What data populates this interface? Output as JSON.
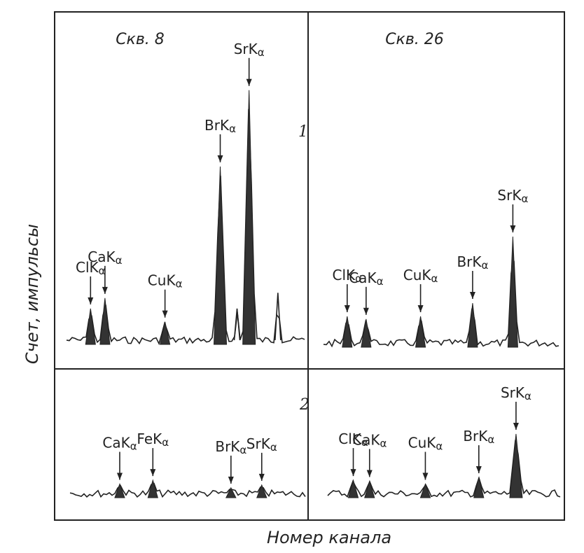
{
  "chart_data": {
    "type": "line",
    "xlabel": "Номер канала",
    "ylabel": "Счет, импульсы",
    "columns": [
      "Скв. 8",
      "Скв. 26"
    ],
    "rows": [
      "1",
      "2"
    ],
    "panels": [
      {
        "column": 0,
        "row": 0,
        "peaks": [
          {
            "label": "ClK",
            "sub": "α",
            "x": 0.1,
            "height": 0.12
          },
          {
            "label": "CaK",
            "sub": "α",
            "x": 0.16,
            "height": 0.16
          },
          {
            "label": "CuK",
            "sub": "α",
            "x": 0.41,
            "height": 0.07
          },
          {
            "label": "BrK",
            "sub": "α",
            "x": 0.64,
            "height": 0.66
          },
          {
            "label": "SrK",
            "sub": "α",
            "x": 0.76,
            "height": 0.95
          }
        ],
        "extra_peaks": [
          {
            "x": 0.71,
            "height": 0.12
          },
          {
            "x": 0.88,
            "height": 0.18
          }
        ]
      },
      {
        "column": 1,
        "row": 0,
        "peaks": [
          {
            "label": "ClK",
            "sub": "α",
            "x": 0.1,
            "height": 0.1
          },
          {
            "label": "CaK",
            "sub": "α",
            "x": 0.18,
            "height": 0.09
          },
          {
            "label": "CuK",
            "sub": "α",
            "x": 0.41,
            "height": 0.1
          },
          {
            "label": "BrK",
            "sub": "α",
            "x": 0.63,
            "height": 0.15
          },
          {
            "label": "SrK",
            "sub": "α",
            "x": 0.8,
            "height": 0.4
          }
        ],
        "extra_peaks": []
      },
      {
        "column": 0,
        "row": 1,
        "peaks": [
          {
            "label": "CaK",
            "sub": "α",
            "x": 0.21,
            "height": 0.1
          },
          {
            "label": "FeK",
            "sub": "α",
            "x": 0.35,
            "height": 0.14
          },
          {
            "label": "BrK",
            "sub": "α",
            "x": 0.68,
            "height": 0.06
          },
          {
            "label": "SrK",
            "sub": "α",
            "x": 0.81,
            "height": 0.09
          }
        ],
        "extra_peaks": []
      },
      {
        "column": 1,
        "row": 1,
        "peaks": [
          {
            "label": "ClK",
            "sub": "α",
            "x": 0.11,
            "height": 0.14
          },
          {
            "label": "CaK",
            "sub": "α",
            "x": 0.18,
            "height": 0.13
          },
          {
            "label": "CuK",
            "sub": "α",
            "x": 0.42,
            "height": 0.1
          },
          {
            "label": "BrK",
            "sub": "α",
            "x": 0.65,
            "height": 0.17
          },
          {
            "label": "SrK",
            "sub": "α",
            "x": 0.81,
            "height": 0.63
          }
        ],
        "extra_peaks": []
      }
    ]
  }
}
